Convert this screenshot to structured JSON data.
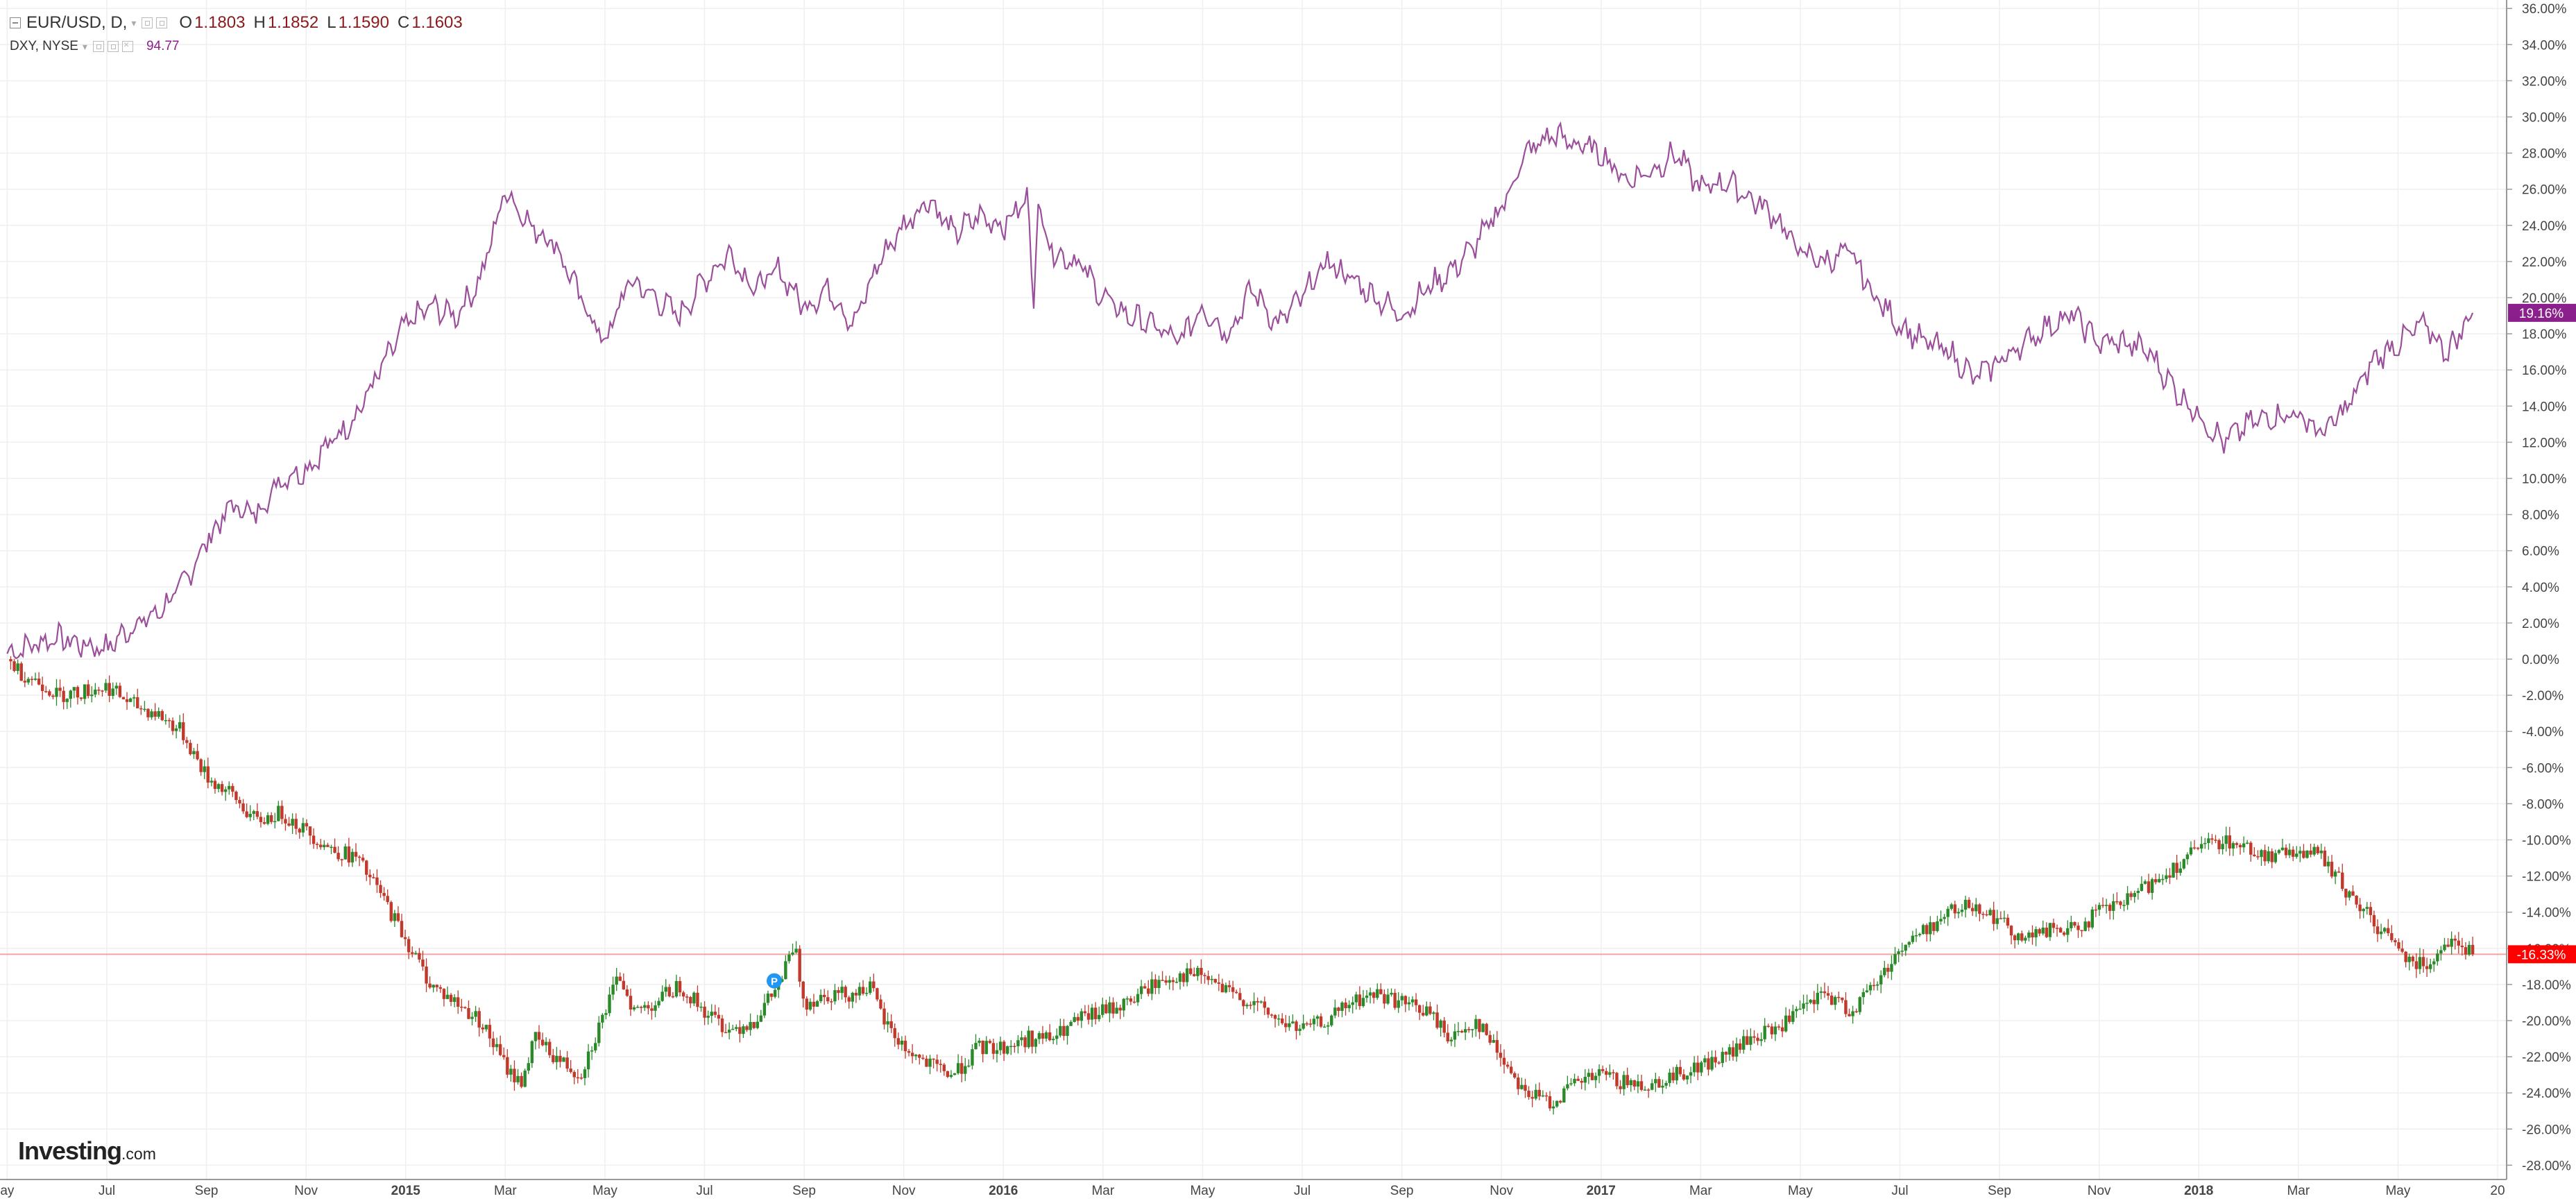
{
  "legend": {
    "symbol": "EUR/USD, D,",
    "ohlc": [
      {
        "key": "O",
        "value": "1.1803"
      },
      {
        "key": "H",
        "value": "1.1852"
      },
      {
        "key": "L",
        "value": "1.1590"
      },
      {
        "key": "C",
        "value": "1.1603"
      }
    ],
    "compare_symbol": "DXY, NYSE",
    "compare_value": "94.77"
  },
  "branding": {
    "logo_main": "Investing",
    "logo_suffix": ".com"
  },
  "colors": {
    "dxy_line": "#9b4f9b",
    "bull": "#2a8a2a",
    "bear": "#c0392b",
    "current_line": "#f4a3a3",
    "eur_badge": "#ff0000",
    "dxy_badge": "#8b1f8b",
    "grid": "#efefef"
  },
  "chart_data": {
    "type": "line",
    "ylabel": "",
    "ylim": [
      -29,
      36
    ],
    "y_ticks": [
      "36.00%",
      "34.00%",
      "32.00%",
      "30.00%",
      "28.00%",
      "26.00%",
      "24.00%",
      "22.00%",
      "20.00%",
      "18.00%",
      "16.00%",
      "14.00%",
      "12.00%",
      "10.00%",
      "8.00%",
      "6.00%",
      "4.00%",
      "2.00%",
      "0.00%",
      "-2.00%",
      "-4.00%",
      "-6.00%",
      "-8.00%",
      "-10.00%",
      "-12.00%",
      "-14.00%",
      "-16.00%",
      "-18.00%",
      "-20.00%",
      "-22.00%",
      "-24.00%",
      "-26.00%",
      "-28.00%"
    ],
    "x_ticks": [
      {
        "label": "ay",
        "bold": false
      },
      {
        "label": "Jul",
        "bold": false
      },
      {
        "label": "Sep",
        "bold": false
      },
      {
        "label": "Nov",
        "bold": false
      },
      {
        "label": "2015",
        "bold": true
      },
      {
        "label": "Mar",
        "bold": false
      },
      {
        "label": "May",
        "bold": false
      },
      {
        "label": "Jul",
        "bold": false
      },
      {
        "label": "Sep",
        "bold": false
      },
      {
        "label": "Nov",
        "bold": false
      },
      {
        "label": "2016",
        "bold": true
      },
      {
        "label": "Mar",
        "bold": false
      },
      {
        "label": "May",
        "bold": false
      },
      {
        "label": "Jul",
        "bold": false
      },
      {
        "label": "Sep",
        "bold": false
      },
      {
        "label": "Nov",
        "bold": false
      },
      {
        "label": "2017",
        "bold": true
      },
      {
        "label": "Mar",
        "bold": false
      },
      {
        "label": "May",
        "bold": false
      },
      {
        "label": "Jul",
        "bold": false
      },
      {
        "label": "Sep",
        "bold": false
      },
      {
        "label": "Nov",
        "bold": false
      },
      {
        "label": "2018",
        "bold": true
      },
      {
        "label": "Mar",
        "bold": false
      },
      {
        "label": "May",
        "bold": false
      },
      {
        "label": "20",
        "bold": false
      }
    ],
    "x_tick_months": [
      0,
      2,
      4,
      6,
      8,
      10,
      12,
      14,
      16,
      18,
      20,
      22,
      24,
      26,
      28,
      30,
      32,
      34,
      36,
      38,
      40,
      42,
      44,
      46,
      48,
      50
    ],
    "x_range_months": [
      0.05,
      50.0
    ],
    "series": [
      {
        "symbol": "DXY",
        "style": "line",
        "current_label": "19.16%",
        "points": [
          [
            0.0,
            0.3
          ],
          [
            0.5,
            0.8
          ],
          [
            1.0,
            1.2
          ],
          [
            1.5,
            0.8
          ],
          [
            2.0,
            0.6
          ],
          [
            2.5,
            1.8
          ],
          [
            3.0,
            2.5
          ],
          [
            3.5,
            4.0
          ],
          [
            4.0,
            6.5
          ],
          [
            4.5,
            8.5
          ],
          [
            5.0,
            8.0
          ],
          [
            5.5,
            10.0
          ],
          [
            6.0,
            10.5
          ],
          [
            6.5,
            12.0
          ],
          [
            7.0,
            13.5
          ],
          [
            7.5,
            16.0
          ],
          [
            8.0,
            18.5
          ],
          [
            8.5,
            19.5
          ],
          [
            9.0,
            19.0
          ],
          [
            9.5,
            21.0
          ],
          [
            10.0,
            26.0
          ],
          [
            10.5,
            24.0
          ],
          [
            11.0,
            23.0
          ],
          [
            11.5,
            20.0
          ],
          [
            12.0,
            17.5
          ],
          [
            12.5,
            21.0
          ],
          [
            13.0,
            20.0
          ],
          [
            13.5,
            19.0
          ],
          [
            14.0,
            21.0
          ],
          [
            14.5,
            22.5
          ],
          [
            15.0,
            20.5
          ],
          [
            15.5,
            21.5
          ],
          [
            16.0,
            19.5
          ],
          [
            16.5,
            20.5
          ],
          [
            17.0,
            18.5
          ],
          [
            17.5,
            22.0
          ],
          [
            18.0,
            24.0
          ],
          [
            18.5,
            25.5
          ],
          [
            19.0,
            23.5
          ],
          [
            19.5,
            24.5
          ],
          [
            20.0,
            24.0
          ],
          [
            20.5,
            25.5
          ],
          [
            20.6,
            19.6
          ],
          [
            20.7,
            25.0
          ],
          [
            21.0,
            22.5
          ],
          [
            21.5,
            22.0
          ],
          [
            22.0,
            20.0
          ],
          [
            22.5,
            19.0
          ],
          [
            23.0,
            18.5
          ],
          [
            23.5,
            17.5
          ],
          [
            24.0,
            19.5
          ],
          [
            24.5,
            18.0
          ],
          [
            25.0,
            20.5
          ],
          [
            25.5,
            18.5
          ],
          [
            26.0,
            20.0
          ],
          [
            26.5,
            22.0
          ],
          [
            27.0,
            21.0
          ],
          [
            27.5,
            20.0
          ],
          [
            28.0,
            19.0
          ],
          [
            28.5,
            20.5
          ],
          [
            29.0,
            21.5
          ],
          [
            29.5,
            23.0
          ],
          [
            30.0,
            25.0
          ],
          [
            30.5,
            28.0
          ],
          [
            31.0,
            29.0
          ],
          [
            31.5,
            28.5
          ],
          [
            32.0,
            28.0
          ],
          [
            32.5,
            26.5
          ],
          [
            33.0,
            27.0
          ],
          [
            33.5,
            28.0
          ],
          [
            34.0,
            26.0
          ],
          [
            34.5,
            26.5
          ],
          [
            35.0,
            25.5
          ],
          [
            35.5,
            24.5
          ],
          [
            36.0,
            22.5
          ],
          [
            36.5,
            22.0
          ],
          [
            37.0,
            22.5
          ],
          [
            37.5,
            20.0
          ],
          [
            38.0,
            18.5
          ],
          [
            38.5,
            17.5
          ],
          [
            39.0,
            17.0
          ],
          [
            39.5,
            15.5
          ],
          [
            40.0,
            16.5
          ],
          [
            40.5,
            17.5
          ],
          [
            41.0,
            18.5
          ],
          [
            41.5,
            19.0
          ],
          [
            42.0,
            17.5
          ],
          [
            42.5,
            17.5
          ],
          [
            43.0,
            17.0
          ],
          [
            43.5,
            15.0
          ],
          [
            44.0,
            13.5
          ],
          [
            44.5,
            12.0
          ],
          [
            45.0,
            13.0
          ],
          [
            45.5,
            13.5
          ],
          [
            46.0,
            13.5
          ],
          [
            46.5,
            12.5
          ],
          [
            47.0,
            14.0
          ],
          [
            47.5,
            16.5
          ],
          [
            48.0,
            17.5
          ],
          [
            48.5,
            18.5
          ],
          [
            49.0,
            17.0
          ],
          [
            49.5,
            19.16
          ]
        ]
      },
      {
        "symbol": "EUR/USD",
        "style": "candlestick",
        "current_label": "-16.33%",
        "current_value": -16.33,
        "points": [
          [
            0.0,
            0.0
          ],
          [
            0.3,
            -0.8
          ],
          [
            0.8,
            -1.5
          ],
          [
            1.0,
            -2.0
          ],
          [
            1.5,
            -1.8
          ],
          [
            2.0,
            -1.5
          ],
          [
            2.5,
            -2.5
          ],
          [
            3.0,
            -3.0
          ],
          [
            3.5,
            -4.0
          ],
          [
            4.0,
            -6.5
          ],
          [
            4.5,
            -7.5
          ],
          [
            5.0,
            -9.0
          ],
          [
            5.5,
            -8.5
          ],
          [
            6.0,
            -9.5
          ],
          [
            6.5,
            -10.5
          ],
          [
            7.0,
            -11.0
          ],
          [
            7.5,
            -13.0
          ],
          [
            8.0,
            -15.5
          ],
          [
            8.5,
            -18.0
          ],
          [
            9.0,
            -19.0
          ],
          [
            9.5,
            -20.0
          ],
          [
            10.0,
            -22.5
          ],
          [
            10.3,
            -23.5
          ],
          [
            10.6,
            -21.0
          ],
          [
            11.0,
            -22.0
          ],
          [
            11.5,
            -23.0
          ],
          [
            12.0,
            -19.5
          ],
          [
            12.3,
            -17.5
          ],
          [
            12.6,
            -19.5
          ],
          [
            13.0,
            -19.0
          ],
          [
            13.5,
            -18.0
          ],
          [
            14.0,
            -19.5
          ],
          [
            14.5,
            -20.5
          ],
          [
            15.0,
            -20.0
          ],
          [
            15.5,
            -18.0
          ],
          [
            15.8,
            -15.8
          ],
          [
            16.0,
            -19.0
          ],
          [
            16.5,
            -18.5
          ],
          [
            17.0,
            -18.5
          ],
          [
            17.3,
            -18.0
          ],
          [
            17.6,
            -20.0
          ],
          [
            18.0,
            -21.5
          ],
          [
            18.5,
            -22.5
          ],
          [
            19.0,
            -23.0
          ],
          [
            19.5,
            -21.5
          ],
          [
            20.0,
            -21.5
          ],
          [
            20.5,
            -21.0
          ],
          [
            21.0,
            -21.0
          ],
          [
            21.5,
            -20.0
          ],
          [
            22.0,
            -19.5
          ],
          [
            22.5,
            -19.0
          ],
          [
            23.0,
            -18.0
          ],
          [
            23.5,
            -17.5
          ],
          [
            24.0,
            -17.5
          ],
          [
            24.5,
            -18.5
          ],
          [
            25.0,
            -19.0
          ],
          [
            25.5,
            -20.0
          ],
          [
            26.0,
            -20.5
          ],
          [
            26.5,
            -20.0
          ],
          [
            27.0,
            -19.0
          ],
          [
            27.5,
            -18.5
          ],
          [
            28.0,
            -19.0
          ],
          [
            28.5,
            -19.5
          ],
          [
            29.0,
            -21.0
          ],
          [
            29.5,
            -20.0
          ],
          [
            30.0,
            -22.0
          ],
          [
            30.5,
            -24.0
          ],
          [
            31.0,
            -24.5
          ],
          [
            31.5,
            -23.5
          ],
          [
            32.0,
            -23.0
          ],
          [
            32.5,
            -23.5
          ],
          [
            33.0,
            -23.5
          ],
          [
            33.5,
            -23.0
          ],
          [
            34.0,
            -22.5
          ],
          [
            34.5,
            -22.0
          ],
          [
            35.0,
            -21.0
          ],
          [
            35.5,
            -20.5
          ],
          [
            36.0,
            -19.5
          ],
          [
            36.5,
            -18.5
          ],
          [
            37.0,
            -19.5
          ],
          [
            37.5,
            -18.0
          ],
          [
            38.0,
            -16.0
          ],
          [
            38.5,
            -15.0
          ],
          [
            39.0,
            -14.0
          ],
          [
            39.5,
            -13.5
          ],
          [
            40.0,
            -14.5
          ],
          [
            40.5,
            -15.5
          ],
          [
            41.0,
            -15.0
          ],
          [
            41.5,
            -15.0
          ],
          [
            42.0,
            -14.0
          ],
          [
            42.5,
            -13.5
          ],
          [
            43.0,
            -12.5
          ],
          [
            43.5,
            -11.5
          ],
          [
            44.0,
            -10.5
          ],
          [
            44.5,
            -10.0
          ],
          [
            45.0,
            -10.5
          ],
          [
            45.5,
            -11.0
          ],
          [
            46.0,
            -10.5
          ],
          [
            46.5,
            -11.0
          ],
          [
            47.0,
            -13.0
          ],
          [
            47.5,
            -14.5
          ],
          [
            48.0,
            -16.0
          ],
          [
            48.5,
            -17.0
          ],
          [
            49.0,
            -15.5
          ],
          [
            49.5,
            -16.33
          ]
        ]
      }
    ]
  }
}
